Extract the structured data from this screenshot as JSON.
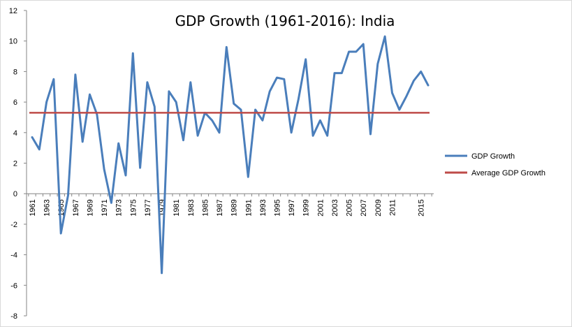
{
  "chart_data": {
    "type": "line",
    "title": "GDP Growth (1961-2016): India",
    "xlabel": "",
    "ylabel": "",
    "x": [
      1961,
      1962,
      1963,
      1964,
      1965,
      1966,
      1967,
      1968,
      1969,
      1970,
      1971,
      1972,
      1973,
      1974,
      1975,
      1976,
      1977,
      1978,
      1979,
      1980,
      1981,
      1982,
      1983,
      1984,
      1985,
      1986,
      1987,
      1988,
      1989,
      1990,
      1991,
      1992,
      1993,
      1994,
      1995,
      1996,
      1997,
      1998,
      1999,
      2000,
      2001,
      2002,
      2003,
      2004,
      2005,
      2006,
      2007,
      2008,
      2009,
      2010,
      2011,
      2012,
      2013,
      2014,
      2015,
      2016
    ],
    "x_tick_labels": [
      "1961",
      "1963",
      "1965",
      "1967",
      "1969",
      "1971",
      "1973",
      "1975",
      "1977",
      "1979",
      "1981",
      "1983",
      "1985",
      "1987",
      "1989",
      "1991",
      "1993",
      "1995",
      "1997",
      "1999",
      "2001",
      "2003",
      "2005",
      "2007",
      "2009",
      "2011",
      "2015"
    ],
    "ylim": [
      -8,
      12
    ],
    "y_ticks": [
      -8,
      -6,
      -4,
      -2,
      0,
      2,
      4,
      6,
      8,
      10,
      12
    ],
    "series": [
      {
        "name": "GDP Growth",
        "color": "#4a7ebb",
        "values": [
          3.7,
          2.9,
          6.0,
          7.5,
          -2.6,
          -0.1,
          7.8,
          3.4,
          6.5,
          5.2,
          1.6,
          -0.6,
          3.3,
          1.2,
          9.2,
          1.7,
          7.3,
          5.7,
          -5.2,
          6.7,
          6.0,
          3.5,
          7.3,
          3.8,
          5.3,
          4.8,
          4.0,
          9.6,
          5.9,
          5.5,
          1.1,
          5.5,
          4.8,
          6.7,
          7.6,
          7.5,
          4.0,
          6.2,
          8.8,
          3.8,
          4.8,
          3.8,
          7.9,
          7.9,
          9.3,
          9.3,
          9.8,
          3.9,
          8.5,
          10.3,
          6.6,
          5.5,
          6.4,
          7.4,
          8.0,
          7.1
        ]
      },
      {
        "name": "Average GDP Growth",
        "color": "#be4b48",
        "value": 5.3
      }
    ],
    "legend_position": "right",
    "grid": false
  }
}
